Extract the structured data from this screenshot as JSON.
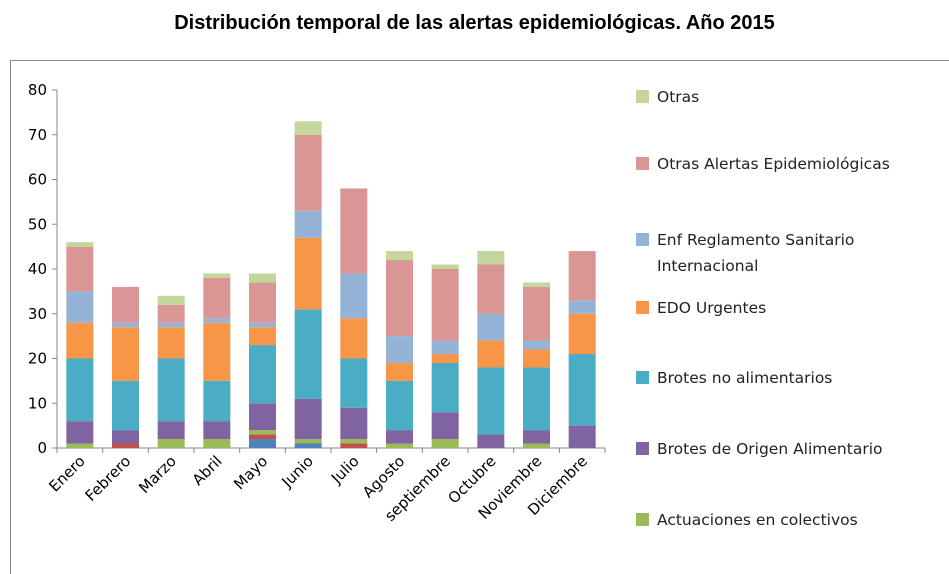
{
  "chart_data": {
    "type": "stacked_bar",
    "title": "Distribución temporal de las alertas epidemiológicas. Año 2015",
    "categories": [
      "Enero",
      "Febrero",
      "Marzo",
      "Abril",
      "Mayo",
      "Junio",
      "Julio",
      "Agosto",
      "septiembre",
      "Octubre",
      "Noviembre",
      "Diciembre"
    ],
    "series": [
      {
        "color": "#4f81bd",
        "values": [
          0,
          0,
          0,
          0,
          2,
          1,
          0,
          0,
          0,
          0,
          0,
          0
        ]
      },
      {
        "color": "#c0504d",
        "values": [
          0,
          1,
          0,
          0,
          1,
          0,
          1,
          0,
          0,
          0,
          0,
          0
        ]
      },
      {
        "name": "Actuaciones en colectivos",
        "color": "#9bbb59",
        "values": [
          1,
          0,
          2,
          2,
          1,
          1,
          1,
          1,
          2,
          0,
          1,
          0
        ]
      },
      {
        "name": "Brotes de Origen Alimentario",
        "color": "#8064a2",
        "values": [
          5,
          3,
          4,
          4,
          6,
          9,
          7,
          3,
          6,
          3,
          3,
          5
        ]
      },
      {
        "name": "Brotes no alimentarios",
        "color": "#4bacc6",
        "values": [
          14,
          11,
          14,
          9,
          13,
          20,
          11,
          11,
          11,
          15,
          14,
          16
        ]
      },
      {
        "name": "EDO Urgentes",
        "color": "#f79646",
        "values": [
          8,
          12,
          7,
          13,
          4,
          16,
          9,
          4,
          2,
          6,
          4,
          9
        ]
      },
      {
        "name": "Enf Reglamento Sanitario Internacional",
        "color": "#95b3d7",
        "values": [
          7,
          1,
          1,
          1,
          1,
          6,
          10,
          6,
          3,
          6,
          2,
          3
        ]
      },
      {
        "name": "Otras Alertas Epidemiológicas",
        "color": "#d99694",
        "values": [
          10,
          8,
          4,
          9,
          9,
          17,
          19,
          17,
          16,
          11,
          12,
          11
        ]
      },
      {
        "name": "Otras",
        "color": "#c3d69b",
        "values": [
          1,
          0,
          2,
          1,
          2,
          3,
          0,
          2,
          1,
          3,
          1,
          0
        ]
      }
    ],
    "ylim": [
      0,
      80
    ],
    "yticks": [
      0,
      10,
      20,
      30,
      40,
      50,
      60,
      70,
      80
    ],
    "legend": "right"
  }
}
